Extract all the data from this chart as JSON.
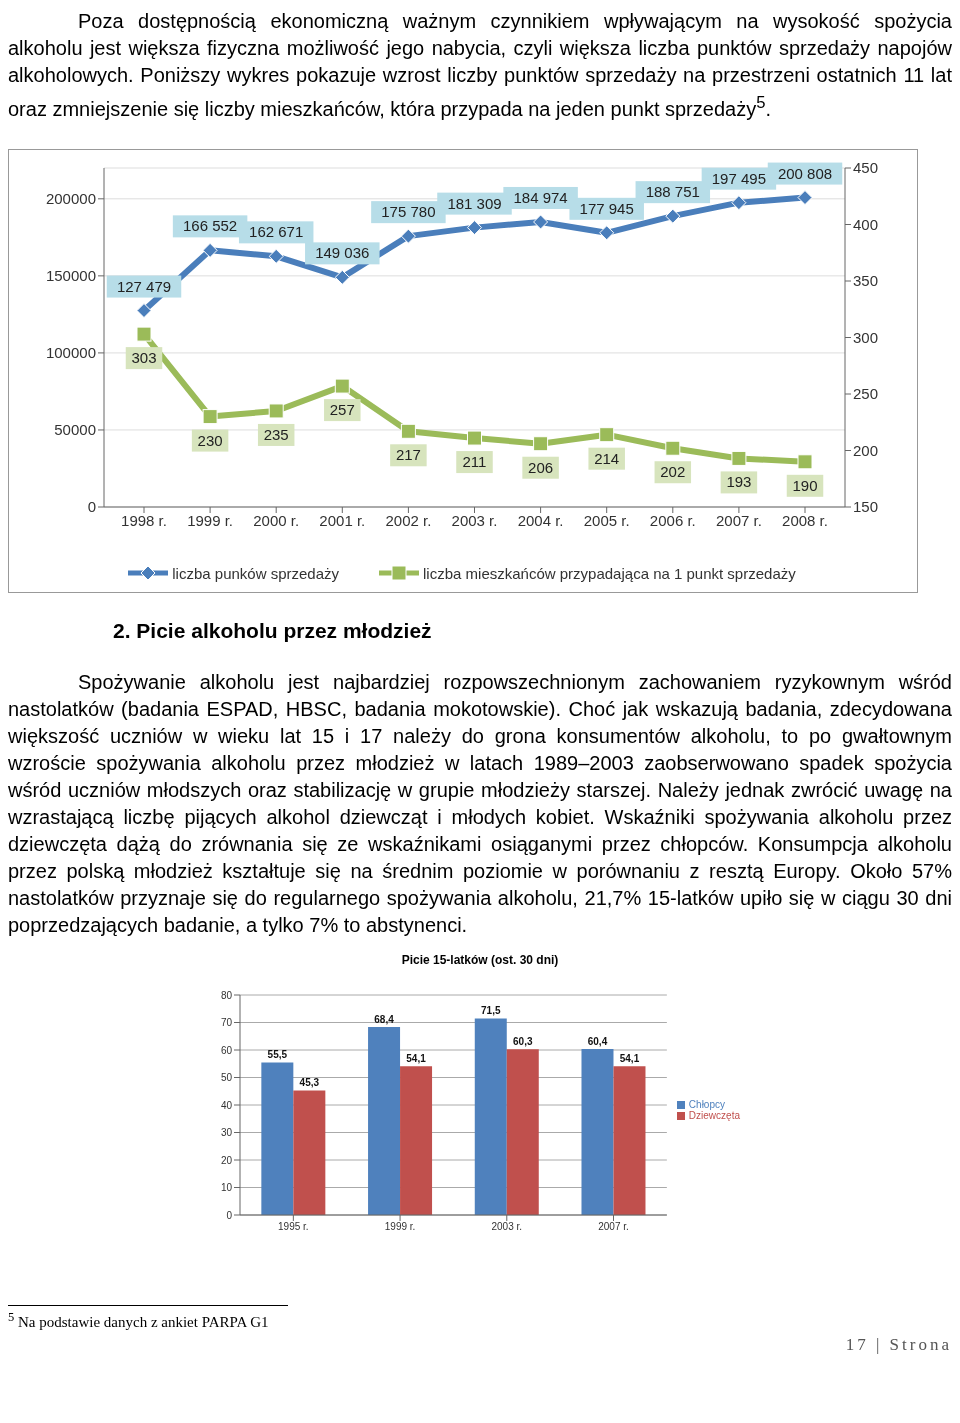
{
  "chart_data": [
    {
      "type": "line",
      "annotations": [
        "Poza dostępnością ekonomiczną ważnym czynnikiem wpływającym na wysokość spożycia alkoholu jest większa fizyczna możliwość jego nabycia, czyli większa liczba punktów sprzedaży napojów alkoholowych. Poniższy wykres pokazuje wzrost liczby punktów sprzedaży na przestrzeni ostatnich 11 lat oraz zmniejszenie się liczby mieszkańców, która przypada na jeden punkt sprzedaży$^{5}$."
      ],
      "categories": [
        "1998 r.",
        "1999 r.",
        "2000 r.",
        "2001 r.",
        "2002 r.",
        "2003 r.",
        "2004 r.",
        "2005 r.",
        "2006 r.",
        "2007 r.",
        "2008 r."
      ],
      "series": [
        {
          "name": "liczba punków sprzedaży",
          "color": "#4a7ebb",
          "marker": "diamond",
          "values": [
            127479,
            166552,
            162671,
            149036,
            175780,
            181309,
            184974,
            177945,
            188751,
            197495,
            200808
          ],
          "value_labels": [
            "127 479",
            "166 552",
            "162 671",
            "149 036",
            "175 780",
            "181 309",
            "184 974",
            "177 945",
            "188 751",
            "197 495",
            "200 808"
          ]
        },
        {
          "name": "liczba mieszkańców przypadająca na 1 punkt sprzedaży",
          "color": "#9bbb59",
          "marker": "square",
          "axis": "y2",
          "values": [
            303,
            230,
            235,
            257,
            217,
            211,
            206,
            214,
            202,
            193,
            190
          ],
          "value_labels": [
            "303",
            "230",
            "235",
            "257",
            "217",
            "211",
            "206",
            "214",
            "202",
            "193",
            "190"
          ]
        }
      ],
      "ylim": [
        0,
        220000
      ],
      "yticks": [
        0,
        50000,
        100000,
        150000,
        200000
      ],
      "y2lim": [
        150,
        450
      ],
      "y2ticks": [
        150,
        200,
        250,
        300,
        350,
        400,
        450
      ],
      "grid": "y",
      "legend": "bottom",
      "line_style": "solid"
    },
    {
      "type": "bar",
      "title": "Picie 15-latków (ost. 30 dni)",
      "annotations": [
        "2. Picie alkoholu przez młodzież",
        "Spożywanie alkoholu jest najbardziej rozpowszechnionym zachowaniem ryzykownym wśród nastolatków (badania ESPAD, HBSC, badania mokotowskie). Choć jak wskazują badania, zdecydowana większość uczniów w wieku lat 15 i 17 należy do grona konsumentów alkoholu, to po gwałtownym wzroście spożywania alkoholu przez młodzież w latach 1989–2003 zaobserwowano spadek spożycia wśród uczniów młodszych oraz stabilizację w grupie młodzieży starszej. Należy jednak zwrócić uwagę na wzrastającą liczbę pijących alkohol dziewcząt i młodych kobiet. Wskaźniki spożywania alkoholu przez dziewczęta dążą do zrównania się ze wskaźnikami osiąganymi przez chłopców. Konsumpcja alkoholu przez polską młodzież kształtuje się na średnim poziomie w porównaniu z resztą Europy. Około 57% nastolatków przyznaje się do regularnego spożywania alkoholu, 21,7% 15-latków upiło się w ciągu 30 dni poprzedzających badanie, a tylko 7% to abstynenci.",
        "$^{5}$ Na podstawie danych z ankiet PARPA G1",
        "17 | Strona"
      ],
      "categories": [
        "1995 r.",
        "1999 r.",
        "2003 r.",
        "2007 r."
      ],
      "series": [
        {
          "name": "Chłopcy",
          "color": "#4f81bd",
          "values": [
            55.5,
            68.4,
            71.5,
            60.4
          ],
          "value_labels": [
            "55,5",
            "68,4",
            "71,5",
            "60,4"
          ]
        },
        {
          "name": "Dziewczęta",
          "color": "#c0504d",
          "values": [
            45.3,
            54.1,
            60.3,
            54.1
          ],
          "value_labels": [
            "45,3",
            "54,1",
            "60,3",
            "54,1"
          ]
        }
      ],
      "ylim": [
        0,
        80
      ],
      "yticks": [
        0,
        10,
        20,
        30,
        40,
        50,
        60,
        70,
        80
      ],
      "grid": "y",
      "legend": "right"
    }
  ]
}
